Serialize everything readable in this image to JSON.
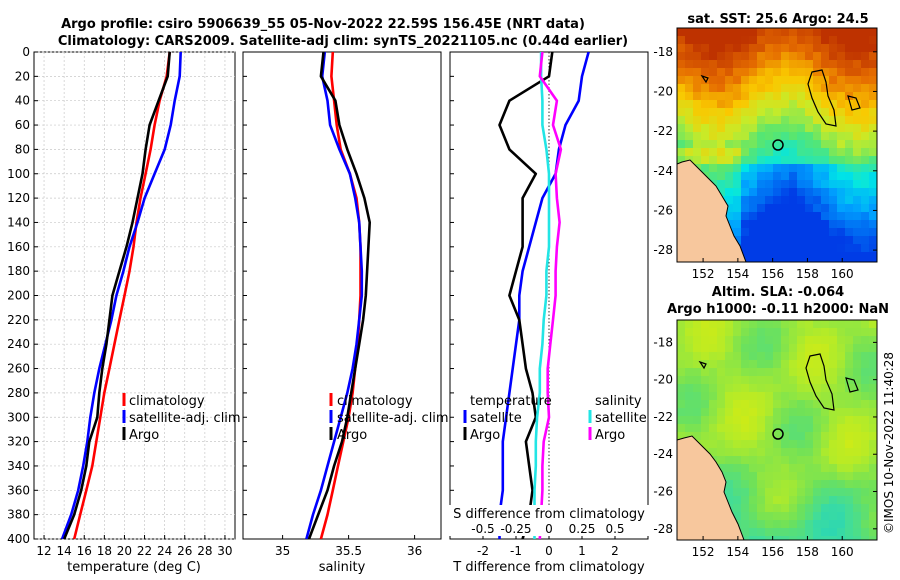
{
  "title": {
    "line1": "Argo profile: csiro 5906639_55 05-Nov-2022 22.59S 156.45E (NRT data)",
    "line2": "Climatology: CARS2009. Satellite-adj clim: synTS_20221105.nc (0.44d earlier)"
  },
  "stamp": "©IMOS 10-Nov-2022 11:40:28",
  "colors": {
    "clim": "#ff0000",
    "sat": "#0000ff",
    "argo": "#000000",
    "sat_sal": "#22e5e5",
    "argo_sal": "#ff00ff",
    "land": "#f7c79d"
  },
  "chart_data": [
    {
      "type": "line",
      "id": "temperature",
      "xlabel": "temperature (deg C)",
      "ylabel": "",
      "xlim": [
        11,
        31
      ],
      "ylim": [
        400,
        0
      ],
      "xticks": [
        12,
        14,
        16,
        18,
        20,
        22,
        24,
        26,
        28,
        30
      ],
      "yticks": [
        0,
        20,
        40,
        60,
        80,
        100,
        120,
        140,
        160,
        180,
        200,
        220,
        240,
        260,
        280,
        300,
        320,
        340,
        360,
        380,
        400
      ],
      "grid": true,
      "legend": "bottom-right",
      "depth": [
        0,
        20,
        40,
        60,
        80,
        100,
        120,
        140,
        160,
        180,
        200,
        220,
        240,
        260,
        280,
        300,
        320,
        340,
        360,
        380,
        400
      ],
      "series": [
        {
          "name": "climatology",
          "color": "#ff0000",
          "values": [
            24.5,
            24.2,
            23.5,
            23.0,
            22.6,
            22.1,
            21.6,
            21.2,
            20.9,
            20.5,
            20.0,
            19.5,
            19.0,
            18.5,
            18.0,
            17.6,
            17.2,
            16.8,
            16.2,
            15.6,
            15.0
          ]
        },
        {
          "name": "satellite-adj. clim",
          "color": "#0000ff",
          "values": [
            25.6,
            25.5,
            25.0,
            24.6,
            24.0,
            23.0,
            22.0,
            21.3,
            20.5,
            19.9,
            19.2,
            18.7,
            18.1,
            17.5,
            17.0,
            16.6,
            16.3,
            15.9,
            15.4,
            14.7,
            13.8
          ]
        },
        {
          "name": "Argo",
          "color": "#000000",
          "values": [
            24.5,
            24.3,
            23.4,
            22.5,
            22.1,
            21.8,
            21.3,
            20.8,
            20.2,
            19.5,
            18.8,
            18.5,
            18.2,
            17.8,
            17.5,
            17.3,
            16.5,
            16.2,
            15.7,
            15.0,
            14.0
          ]
        }
      ]
    },
    {
      "type": "line",
      "id": "salinity",
      "xlabel": "salinity",
      "ylabel": "",
      "xlim": [
        34.7,
        36.2
      ],
      "ylim": [
        400,
        0
      ],
      "xticks": [
        35,
        35.5,
        36
      ],
      "xticklabels": [
        "35",
        "35.5",
        "36"
      ],
      "grid": false,
      "legend": "bottom-right",
      "depth": [
        0,
        20,
        40,
        60,
        80,
        100,
        120,
        140,
        160,
        180,
        200,
        220,
        240,
        260,
        280,
        300,
        320,
        340,
        360,
        380,
        400
      ],
      "series": [
        {
          "name": "climatology",
          "color": "#ff0000",
          "values": [
            35.38,
            35.37,
            35.39,
            35.41,
            35.44,
            35.51,
            35.56,
            35.58,
            35.59,
            35.59,
            35.59,
            35.58,
            35.57,
            35.55,
            35.53,
            35.5,
            35.46,
            35.42,
            35.38,
            35.34,
            35.29
          ]
        },
        {
          "name": "satellite-adj. clim",
          "color": "#0000ff",
          "values": [
            35.32,
            35.3,
            35.34,
            35.36,
            35.43,
            35.51,
            35.55,
            35.58,
            35.59,
            35.6,
            35.6,
            35.58,
            35.56,
            35.53,
            35.49,
            35.44,
            35.39,
            35.34,
            35.29,
            35.23,
            35.18
          ]
        },
        {
          "name": "Argo",
          "color": "#000000",
          "values": [
            35.31,
            35.29,
            35.4,
            35.43,
            35.49,
            35.56,
            35.62,
            35.66,
            35.65,
            35.64,
            35.63,
            35.61,
            35.58,
            35.55,
            35.52,
            35.49,
            35.45,
            35.39,
            35.34,
            35.27,
            35.2
          ]
        }
      ]
    },
    {
      "type": "line",
      "id": "difference",
      "xlabel": "T difference from climatology",
      "x2label": "S difference from climatology",
      "xlim": [
        -3,
        3
      ],
      "x2lim": [
        -0.75,
        0.75
      ],
      "ylim": [
        400,
        0
      ],
      "xticks": [
        -2,
        -1,
        0,
        1,
        2
      ],
      "x2ticks": [
        -0.5,
        -0.25,
        0,
        0.25,
        0.5
      ],
      "x2ticklabels": [
        "-0.5",
        "-0.25",
        "0",
        "0.25",
        "0.5"
      ],
      "grid": false,
      "legend_left_title": "temperature",
      "legend_right_title": "salinity",
      "depth": [
        0,
        20,
        40,
        60,
        80,
        100,
        120,
        140,
        160,
        180,
        200,
        220,
        240,
        260,
        280,
        300,
        320,
        340,
        360,
        380,
        400
      ],
      "series": [
        {
          "name": "satellite",
          "group": "temperature",
          "axis": "T",
          "color": "#0000ff",
          "values": [
            1.2,
            1.0,
            0.9,
            0.5,
            0.3,
            0.2,
            -0.2,
            -0.4,
            -0.6,
            -0.8,
            -0.9,
            -0.9,
            -1.0,
            -1.1,
            -1.2,
            -1.3,
            -1.4,
            -1.4,
            -1.4,
            -1.5,
            -1.5
          ]
        },
        {
          "name": "Argo",
          "group": "temperature",
          "axis": "T",
          "color": "#000000",
          "values": [
            0.1,
            0.0,
            -1.2,
            -1.5,
            -1.2,
            -0.4,
            -0.8,
            -0.8,
            -0.8,
            -1.0,
            -1.2,
            -0.9,
            -0.8,
            -0.7,
            -0.5,
            -0.4,
            -0.7,
            -0.6,
            -0.5,
            -0.6,
            -0.8
          ]
        },
        {
          "name": "satellite",
          "group": "salinity",
          "axis": "S",
          "color": "#22e5e5",
          "values": [
            -0.06,
            -0.06,
            -0.05,
            -0.05,
            -0.02,
            0.0,
            0.0,
            0.0,
            0.0,
            -0.02,
            -0.02,
            -0.04,
            -0.05,
            -0.07,
            -0.07,
            -0.09,
            -0.1,
            -0.1,
            -0.11,
            -0.11,
            -0.11
          ]
        },
        {
          "name": "Argo",
          "group": "salinity",
          "axis": "S",
          "color": "#ff00ff",
          "values": [
            -0.05,
            -0.07,
            0.06,
            0.03,
            0.09,
            0.05,
            0.06,
            0.08,
            0.06,
            0.05,
            0.05,
            0.03,
            0.01,
            -0.01,
            -0.01,
            0.0,
            -0.04,
            -0.05,
            -0.05,
            -0.06,
            -0.07
          ]
        }
      ]
    },
    {
      "type": "heatmap",
      "id": "sst_map",
      "title": "sat. SST: 25.6 Argo: 24.5",
      "xlim": [
        150.5,
        162
      ],
      "ylim": [
        -28.6,
        -16.8
      ],
      "xticks": [
        152,
        154,
        156,
        158,
        160
      ],
      "yticks": [
        -18,
        -20,
        -22,
        -24,
        -26,
        -28
      ],
      "marker": {
        "lon": 156.45,
        "lat": -22.59
      }
    },
    {
      "type": "heatmap",
      "id": "sla_map",
      "title": "Altim. SLA: -0.064",
      "subtitle": "Argo h1000: -0.11 h2000: NaN",
      "xlim": [
        150.5,
        162
      ],
      "ylim": [
        -28.6,
        -16.8
      ],
      "xticks": [
        152,
        154,
        156,
        158,
        160
      ],
      "yticks": [
        -18,
        -20,
        -22,
        -24,
        -26,
        -28
      ],
      "marker": {
        "lon": 156.45,
        "lat": -22.59
      }
    }
  ]
}
